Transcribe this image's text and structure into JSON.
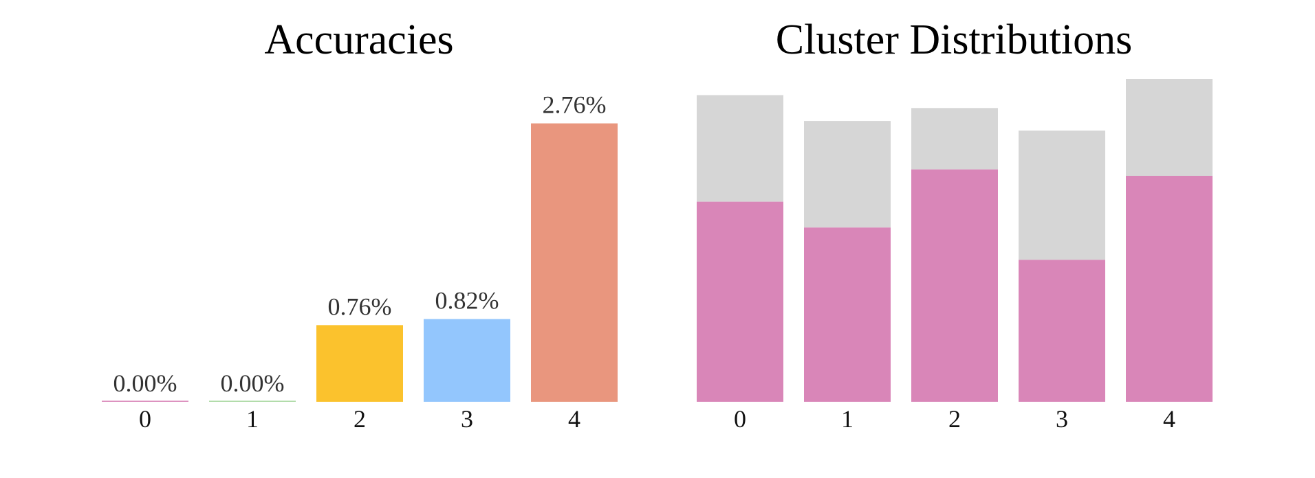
{
  "chart_data": [
    {
      "type": "bar",
      "title": "Accuracies",
      "categories": [
        "0",
        "1",
        "2",
        "3",
        "4"
      ],
      "values": [
        0.0,
        0.0,
        0.76,
        0.82,
        2.76
      ],
      "data_labels": [
        "0.00%",
        "0.00%",
        "0.76%",
        "0.82%",
        "2.76%"
      ],
      "colors": [
        "#d986b8",
        "#a8d8a0",
        "#fbc22d",
        "#93c6fd",
        "#e9967e"
      ],
      "ylim": [
        0,
        3.2
      ],
      "grid": false,
      "axes_visible": false
    },
    {
      "type": "bar",
      "stacked": true,
      "title": "Cluster Distributions",
      "categories": [
        "0",
        "1",
        "2",
        "3",
        "4"
      ],
      "series": [
        {
          "values": [
            0.62,
            0.54,
            0.72,
            0.44,
            0.7
          ],
          "color": "#d986b8"
        },
        {
          "values": [
            0.33,
            0.33,
            0.19,
            0.4,
            0.3
          ],
          "color": "#d6d6d6"
        }
      ],
      "ylim": [
        0,
        1.0
      ],
      "grid": false,
      "axes_visible": false
    }
  ]
}
